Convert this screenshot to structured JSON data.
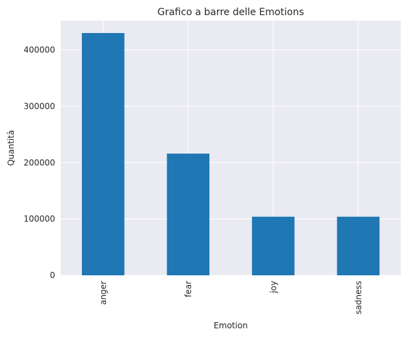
{
  "chart_data": {
    "type": "bar",
    "title": "Grafico a barre delle Emotions",
    "xlabel": "Emotion",
    "ylabel": "Quantità",
    "categories": [
      "anger",
      "fear",
      "joy",
      "sadness"
    ],
    "values": [
      430000,
      216000,
      104000,
      104000
    ],
    "ylim": [
      0,
      452000
    ],
    "yticks": [
      0,
      100000,
      200000,
      300000,
      400000
    ],
    "ytick_labels": [
      "0",
      "100000",
      "200000",
      "300000",
      "400000"
    ],
    "grid": true,
    "legend": "none",
    "x_tick_rotation": "vertical",
    "colors": {
      "bar": "#1f77b4",
      "plot_background": "#eaeaf2",
      "grid": "#ffffff",
      "text": "#262626"
    }
  }
}
